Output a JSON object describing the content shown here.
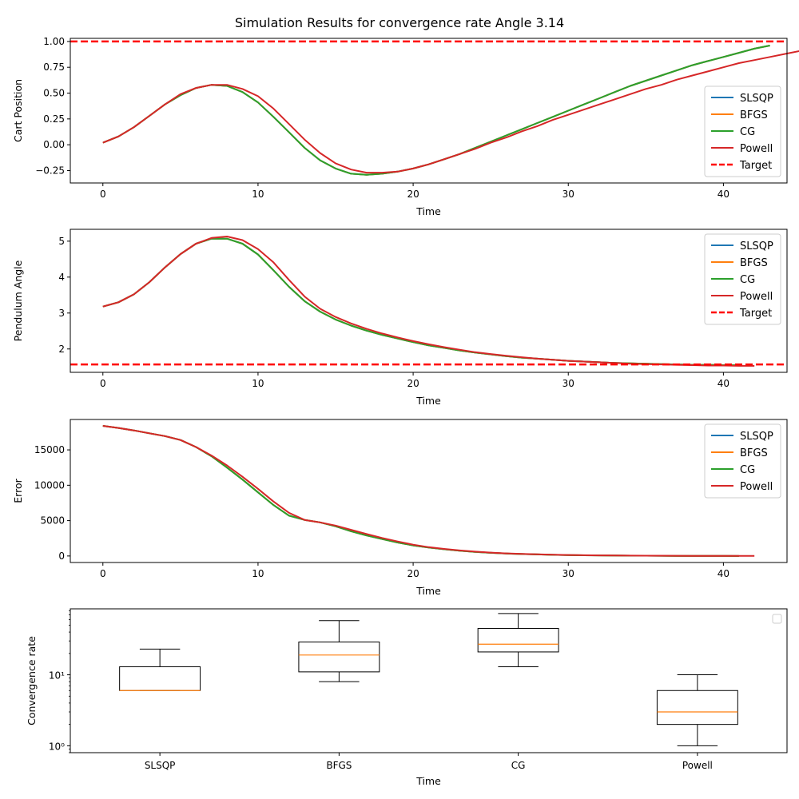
{
  "figure": {
    "title": "Simulation Results for convergence rate Angle 3.14"
  },
  "colors": {
    "SLSQP": "#1f77b4",
    "BFGS": "#ff7f0e",
    "CG": "#2ca02c",
    "Powell": "#d62728",
    "Target": "#ff0000"
  },
  "chart_data": [
    {
      "type": "line",
      "title": "",
      "xlabel": "Time",
      "ylabel": "Cart Position",
      "xlim": [
        -2.1,
        44.1
      ],
      "ylim": [
        -0.37,
        1.03
      ],
      "xticks": [
        0,
        10,
        20,
        30,
        40
      ],
      "yticks": [
        -0.25,
        0.0,
        0.25,
        0.5,
        0.75,
        1.0
      ],
      "ytick_labels": [
        "−0.25",
        "0.00",
        "0.25",
        "0.50",
        "0.75",
        "1.00"
      ],
      "legend": {
        "placement": "lower right"
      },
      "target": {
        "name": "Target",
        "value": 1.0
      },
      "series": [
        {
          "name": "SLSQP",
          "x_start": 0,
          "values": [
            0.02,
            0.08,
            0.17,
            0.28,
            0.39,
            0.48,
            0.55,
            0.58,
            0.57,
            0.51,
            0.41,
            0.27,
            0.12,
            -0.03,
            -0.15,
            -0.23,
            -0.28,
            -0.29,
            -0.28,
            -0.26,
            -0.23,
            -0.19,
            -0.14,
            -0.09,
            -0.03,
            0.03,
            0.09,
            0.15,
            0.21,
            0.27,
            0.33,
            0.39,
            0.45,
            0.51,
            0.57,
            0.62,
            0.67,
            0.72,
            0.77,
            0.81,
            0.85,
            0.89,
            0.93,
            0.96
          ]
        },
        {
          "name": "BFGS",
          "x_start": 0,
          "values": [
            0.02,
            0.08,
            0.17,
            0.28,
            0.39,
            0.48,
            0.55,
            0.58,
            0.57,
            0.51,
            0.41,
            0.27,
            0.12,
            -0.03,
            -0.15,
            -0.23,
            -0.28,
            -0.29,
            -0.28,
            -0.26,
            -0.23,
            -0.19,
            -0.14,
            -0.09,
            -0.03,
            0.03,
            0.09,
            0.15,
            0.21,
            0.27,
            0.33,
            0.39,
            0.45,
            0.51,
            0.57,
            0.62,
            0.67,
            0.72,
            0.77,
            0.81,
            0.85,
            0.89,
            0.93,
            0.96
          ]
        },
        {
          "name": "CG",
          "x_start": 0,
          "values": [
            0.02,
            0.08,
            0.17,
            0.28,
            0.39,
            0.48,
            0.55,
            0.58,
            0.57,
            0.51,
            0.41,
            0.27,
            0.12,
            -0.03,
            -0.15,
            -0.23,
            -0.28,
            -0.29,
            -0.28,
            -0.26,
            -0.23,
            -0.19,
            -0.14,
            -0.09,
            -0.03,
            0.03,
            0.09,
            0.15,
            0.21,
            0.27,
            0.33,
            0.39,
            0.45,
            0.51,
            0.57,
            0.62,
            0.67,
            0.72,
            0.77,
            0.81,
            0.85,
            0.89,
            0.93,
            0.96
          ]
        },
        {
          "name": "Powell",
          "x_start": 0,
          "values": [
            0.02,
            0.08,
            0.17,
            0.28,
            0.39,
            0.49,
            0.55,
            0.58,
            0.58,
            0.54,
            0.47,
            0.35,
            0.2,
            0.05,
            -0.08,
            -0.18,
            -0.24,
            -0.27,
            -0.27,
            -0.26,
            -0.23,
            -0.19,
            -0.14,
            -0.09,
            -0.04,
            0.02,
            0.07,
            0.13,
            0.18,
            0.24,
            0.29,
            0.34,
            0.39,
            0.44,
            0.49,
            0.54,
            0.58,
            0.63,
            0.67,
            0.71,
            0.75,
            0.79,
            0.82,
            0.85,
            0.88,
            0.91,
            0.94,
            0.97
          ]
        }
      ]
    },
    {
      "type": "line",
      "title": "",
      "xlabel": "Time",
      "ylabel": "Pendulum Angle",
      "xlim": [
        -2.1,
        44.1
      ],
      "ylim": [
        1.35,
        5.33
      ],
      "xticks": [
        0,
        10,
        20,
        30,
        40
      ],
      "yticks": [
        2,
        3,
        4,
        5
      ],
      "ytick_labels": [
        "2",
        "3",
        "4",
        "5"
      ],
      "legend": {
        "placement": "upper right"
      },
      "target": {
        "name": "Target",
        "value": 1.57
      },
      "series": [
        {
          "name": "SLSQP",
          "x_start": 0,
          "values": [
            3.18,
            3.3,
            3.52,
            3.86,
            4.27,
            4.64,
            4.93,
            5.07,
            5.07,
            4.93,
            4.63,
            4.19,
            3.73,
            3.33,
            3.04,
            2.82,
            2.65,
            2.51,
            2.39,
            2.29,
            2.19,
            2.1,
            2.03,
            1.96,
            1.9,
            1.85,
            1.8,
            1.76,
            1.73,
            1.7,
            1.67,
            1.65,
            1.63,
            1.61,
            1.6,
            1.59,
            1.58,
            1.57,
            1.56,
            1.56,
            1.55,
            1.55
          ]
        },
        {
          "name": "BFGS",
          "x_start": 0,
          "values": [
            3.18,
            3.3,
            3.52,
            3.86,
            4.27,
            4.64,
            4.93,
            5.07,
            5.07,
            4.93,
            4.63,
            4.19,
            3.73,
            3.33,
            3.04,
            2.82,
            2.65,
            2.51,
            2.39,
            2.29,
            2.19,
            2.1,
            2.03,
            1.96,
            1.9,
            1.85,
            1.8,
            1.76,
            1.73,
            1.7,
            1.67,
            1.65,
            1.63,
            1.61,
            1.6,
            1.59,
            1.58,
            1.57,
            1.56,
            1.56,
            1.55,
            1.55
          ]
        },
        {
          "name": "CG",
          "x_start": 0,
          "values": [
            3.18,
            3.3,
            3.52,
            3.86,
            4.27,
            4.64,
            4.93,
            5.07,
            5.07,
            4.93,
            4.63,
            4.19,
            3.73,
            3.33,
            3.04,
            2.82,
            2.65,
            2.51,
            2.39,
            2.29,
            2.19,
            2.1,
            2.03,
            1.96,
            1.9,
            1.85,
            1.8,
            1.76,
            1.73,
            1.7,
            1.67,
            1.65,
            1.63,
            1.61,
            1.6,
            1.59,
            1.58,
            1.57,
            1.56,
            1.56,
            1.55,
            1.55
          ]
        },
        {
          "name": "Powell",
          "x_start": 0,
          "values": [
            3.18,
            3.3,
            3.52,
            3.86,
            4.27,
            4.64,
            4.93,
            5.09,
            5.13,
            5.03,
            4.78,
            4.41,
            3.92,
            3.46,
            3.12,
            2.89,
            2.71,
            2.56,
            2.43,
            2.32,
            2.22,
            2.13,
            2.05,
            1.98,
            1.91,
            1.86,
            1.81,
            1.77,
            1.73,
            1.7,
            1.67,
            1.65,
            1.63,
            1.61,
            1.59,
            1.58,
            1.57,
            1.56,
            1.55,
            1.54,
            1.54,
            1.53,
            1.53
          ]
        }
      ]
    },
    {
      "type": "line",
      "title": "",
      "xlabel": "Time",
      "ylabel": "Error",
      "xlim": [
        -2.1,
        44.1
      ],
      "ylim": [
        -920,
        19300
      ],
      "xticks": [
        0,
        10,
        20,
        30,
        40
      ],
      "yticks": [
        0,
        5000,
        10000,
        15000
      ],
      "ytick_labels": [
        "0",
        "5000",
        "10000",
        "15000"
      ],
      "legend": {
        "placement": "upper right"
      },
      "series": [
        {
          "name": "SLSQP",
          "x_start": 0,
          "values": [
            18400,
            18100,
            17750,
            17350,
            16950,
            16400,
            15400,
            14100,
            12500,
            10800,
            9000,
            7200,
            5700,
            5100,
            4750,
            4200,
            3500,
            2900,
            2400,
            1900,
            1500,
            1200,
            950,
            750,
            580,
            450,
            350,
            280,
            220,
            170,
            130,
            100,
            80,
            60,
            45,
            35,
            25,
            20,
            15,
            10,
            5,
            0
          ]
        },
        {
          "name": "BFGS",
          "x_start": 0,
          "values": [
            18400,
            18100,
            17750,
            17350,
            16950,
            16400,
            15400,
            14100,
            12500,
            10800,
            9000,
            7200,
            5700,
            5100,
            4750,
            4200,
            3500,
            2900,
            2400,
            1900,
            1500,
            1200,
            950,
            750,
            580,
            450,
            350,
            280,
            220,
            170,
            130,
            100,
            80,
            60,
            45,
            35,
            25,
            20,
            15,
            10,
            5,
            0
          ]
        },
        {
          "name": "CG",
          "x_start": 0,
          "values": [
            18400,
            18100,
            17750,
            17350,
            16950,
            16400,
            15400,
            14100,
            12500,
            10800,
            9000,
            7200,
            5700,
            5100,
            4750,
            4200,
            3500,
            2900,
            2400,
            1900,
            1500,
            1200,
            950,
            750,
            580,
            450,
            350,
            280,
            220,
            170,
            130,
            100,
            80,
            60,
            45,
            35,
            25,
            20,
            15,
            10,
            5,
            0
          ]
        },
        {
          "name": "Powell",
          "x_start": 0,
          "values": [
            18400,
            18100,
            17750,
            17350,
            16950,
            16400,
            15400,
            14200,
            12800,
            11200,
            9500,
            7700,
            6100,
            5100,
            4750,
            4300,
            3700,
            3100,
            2550,
            2050,
            1600,
            1250,
            1000,
            790,
            620,
            480,
            370,
            290,
            230,
            180,
            140,
            110,
            90,
            70,
            55,
            45,
            35,
            28,
            22,
            16,
            11,
            7,
            4
          ]
        }
      ]
    },
    {
      "type": "box",
      "title": "",
      "xlabel": "Time",
      "ylabel": "Convergence rate",
      "yscale": "log",
      "ylim": [
        0.8,
        85
      ],
      "ytick_labels": {
        "1": "10⁰",
        "10": "10¹"
      },
      "categories": [
        "SLSQP",
        "BFGS",
        "CG",
        "Powell"
      ],
      "legend": {
        "placement": "upper right",
        "entries": []
      },
      "boxes": [
        {
          "name": "SLSQP",
          "whisker_low": 6,
          "q1": 6,
          "median": 6,
          "q3": 13,
          "whisker_high": 23
        },
        {
          "name": "BFGS",
          "whisker_low": 8,
          "q1": 11,
          "median": 19,
          "q3": 29,
          "whisker_high": 58
        },
        {
          "name": "CG",
          "whisker_low": 13,
          "q1": 21,
          "median": 27,
          "q3": 45,
          "whisker_high": 73
        },
        {
          "name": "Powell",
          "whisker_low": 1,
          "q1": 2,
          "median": 3,
          "q3": 6,
          "whisker_high": 10
        }
      ]
    }
  ]
}
